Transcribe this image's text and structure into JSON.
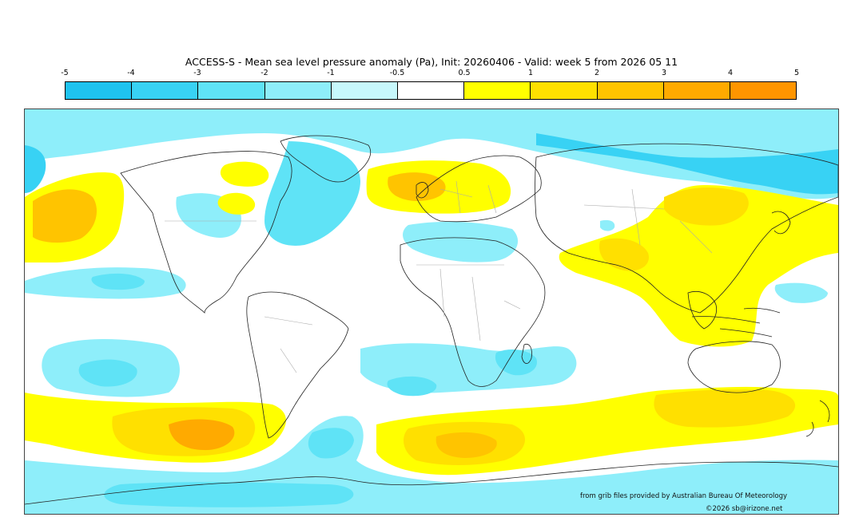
{
  "title": "ACCESS-S - Mean sea level pressure anomaly (Pa), Init: 20260406 - Valid: week 5 from 2026 05 11",
  "colorbar": {
    "ticks": [
      "-5",
      "-4",
      "-3",
      "-2",
      "-1",
      "-0.5",
      "0.5",
      "1",
      "2",
      "3",
      "4",
      "5"
    ],
    "colors": [
      "#1fc3f0",
      "#38d2f4",
      "#5fe3f6",
      "#8eeefa",
      "#c7f8fc",
      "#ffffff",
      "#ffff00",
      "#ffe000",
      "#ffc400",
      "#ffaa00",
      "#ff9500"
    ]
  },
  "credits": {
    "source": "from grib files provided by Australian Bureau Of Meteorology",
    "copyright": "©2026 sb@irizone.net"
  }
}
